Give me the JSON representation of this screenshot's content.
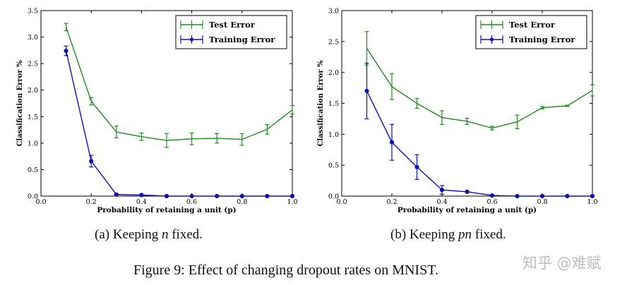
{
  "chart_data": [
    {
      "type": "line",
      "panel": "a",
      "xlabel": "Probability of retaining a unit (p)",
      "ylabel": "Classification Error %",
      "xlim": [
        0.0,
        1.0
      ],
      "ylim": [
        0.0,
        3.5
      ],
      "xticks": [
        "0.0",
        "0.2",
        "0.4",
        "0.6",
        "0.8",
        "1.0"
      ],
      "yticks": [
        "0.0",
        "0.5",
        "1.0",
        "1.5",
        "2.0",
        "2.5",
        "3.0",
        "3.5"
      ],
      "legend_position": "top-right",
      "series": [
        {
          "name": "Test Error",
          "color": "#228B22",
          "marker": "none",
          "x": [
            0.1,
            0.2,
            0.3,
            0.4,
            0.5,
            0.6,
            0.7,
            0.8,
            0.9,
            1.0
          ],
          "values": [
            3.19,
            1.79,
            1.21,
            1.12,
            1.05,
            1.08,
            1.09,
            1.07,
            1.26,
            1.63
          ],
          "errors": [
            0.07,
            0.07,
            0.11,
            0.07,
            0.13,
            0.11,
            0.09,
            0.11,
            0.09,
            0.08
          ]
        },
        {
          "name": "Training Error",
          "color": "#1010B0",
          "marker": "circle",
          "x": [
            0.1,
            0.2,
            0.3,
            0.4,
            0.5,
            0.6,
            0.7,
            0.8,
            0.9,
            1.0
          ],
          "values": [
            2.74,
            0.66,
            0.03,
            0.02,
            0.0,
            0.0,
            0.0,
            0.0,
            0.0,
            0.0
          ],
          "errors": [
            0.09,
            0.11,
            0.01,
            0.01,
            0.0,
            0.0,
            0.0,
            0.0,
            0.0,
            0.0
          ]
        }
      ]
    },
    {
      "type": "line",
      "panel": "b",
      "xlabel": "Probability of retaining a unit (p)",
      "ylabel": "Classification Error %",
      "xlim": [
        0.0,
        1.0
      ],
      "ylim": [
        0.0,
        3.0
      ],
      "xticks": [
        "0.0",
        "0.2",
        "0.4",
        "0.6",
        "0.8",
        "1.0"
      ],
      "yticks": [
        "0.0",
        "0.5",
        "1.0",
        "1.5",
        "2.0",
        "2.5",
        "3.0"
      ],
      "legend_position": "top-right",
      "series": [
        {
          "name": "Test Error",
          "color": "#228B22",
          "marker": "none",
          "x": [
            0.1,
            0.2,
            0.3,
            0.4,
            0.5,
            0.6,
            0.7,
            0.8,
            0.9,
            1.0
          ],
          "values": [
            2.39,
            1.77,
            1.5,
            1.27,
            1.21,
            1.1,
            1.2,
            1.43,
            1.46,
            1.71
          ],
          "errors": [
            0.27,
            0.21,
            0.08,
            0.11,
            0.05,
            0.03,
            0.11,
            0.02,
            0.01,
            0.09
          ]
        },
        {
          "name": "Training Error",
          "color": "#1010B0",
          "marker": "circle",
          "x": [
            0.1,
            0.2,
            0.3,
            0.4,
            0.5,
            0.6,
            0.7,
            0.8,
            0.9,
            1.0
          ],
          "values": [
            1.7,
            0.87,
            0.47,
            0.1,
            0.07,
            0.01,
            0.0,
            0.0,
            0.0,
            0.0
          ],
          "errors": [
            0.45,
            0.29,
            0.2,
            0.07,
            0.01,
            0.0,
            0.0,
            0.0,
            0.0,
            0.0
          ]
        }
      ]
    }
  ],
  "captions": {
    "a_prefix": "(a) Keeping ",
    "a_var": "n",
    "a_suffix": " fixed.",
    "b_prefix": "(b) Keeping ",
    "b_var": "pn",
    "b_suffix": " fixed.",
    "figure": "Figure 9: Effect of changing dropout rates on MNIST."
  },
  "watermark": "知乎 @难赋"
}
